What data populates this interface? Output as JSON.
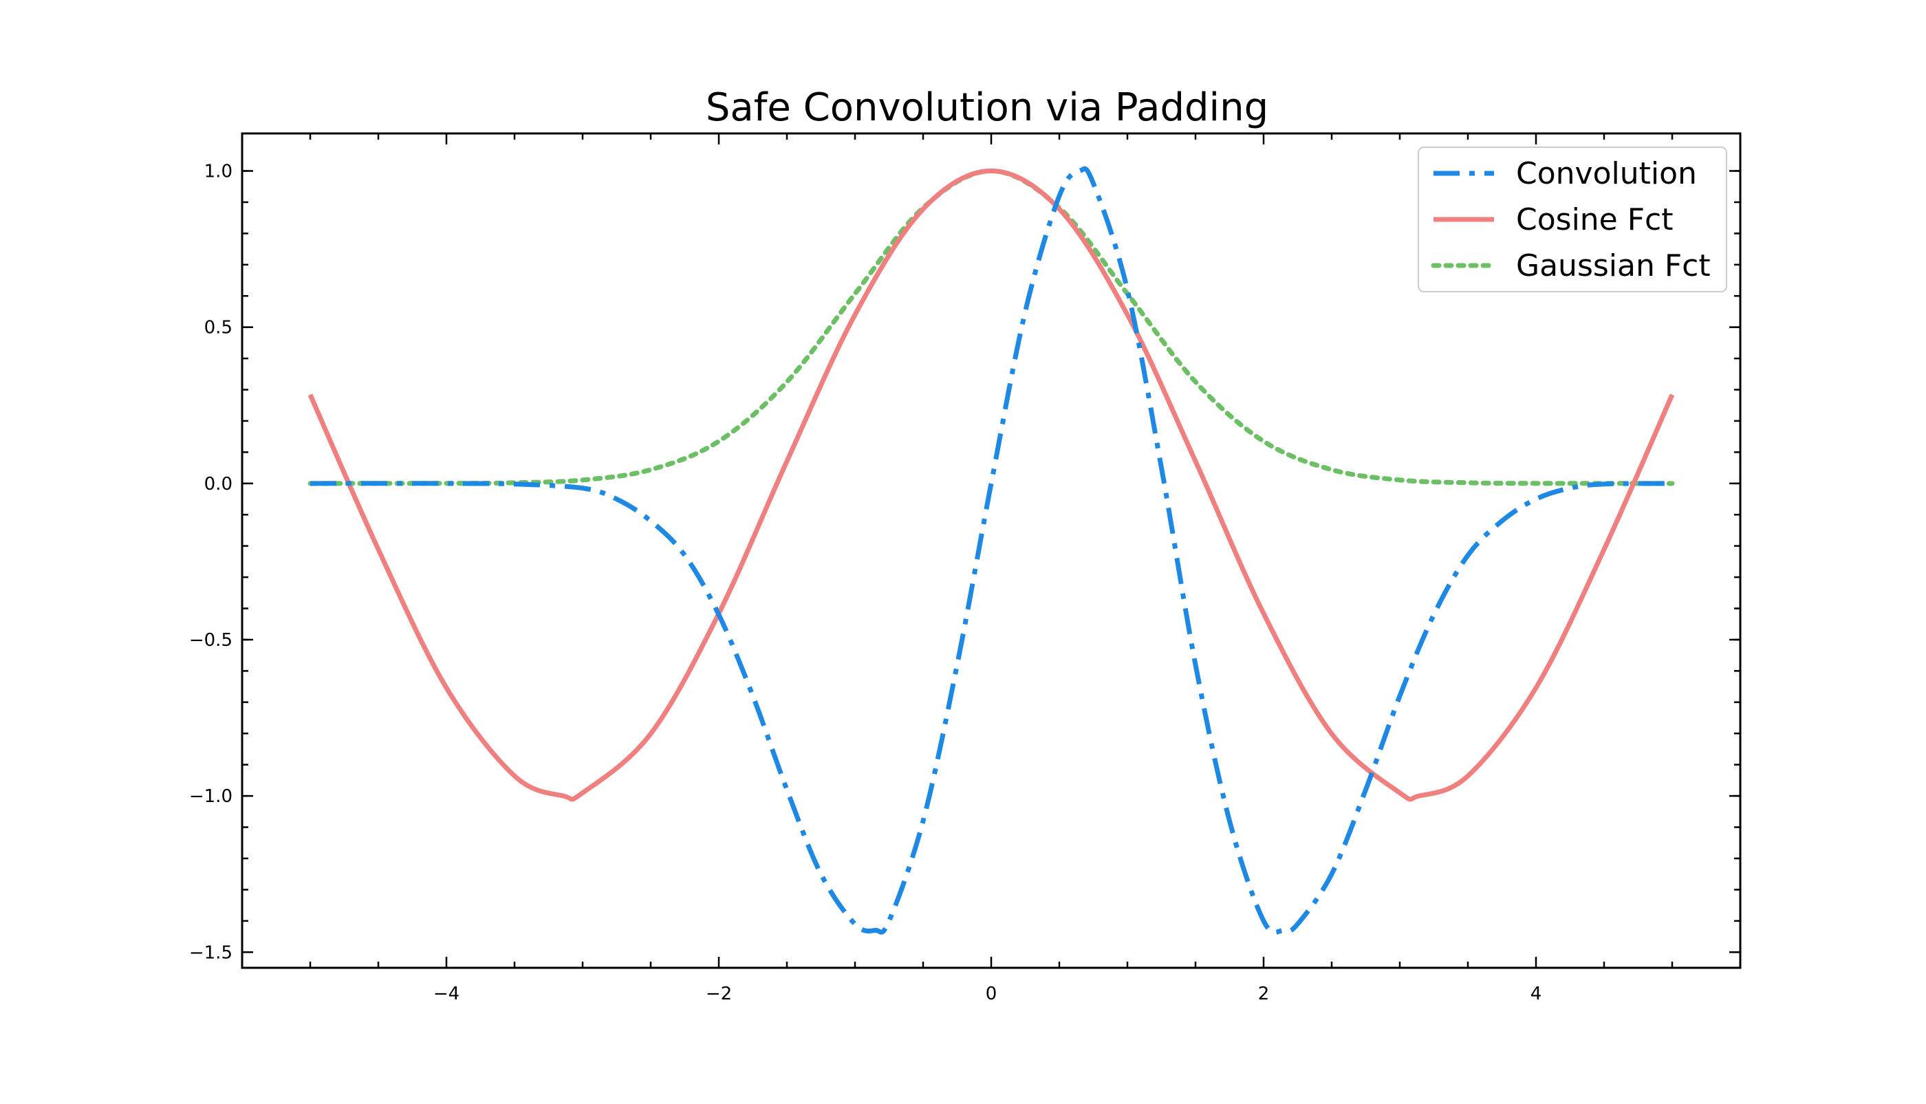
{
  "chart_data": {
    "type": "line",
    "title": "Safe Convolution via Padding",
    "xlabel": "",
    "ylabel": "",
    "xlim": [
      -5.5,
      5.5
    ],
    "ylim": [
      -1.55,
      1.12
    ],
    "x_ticks": [
      -4,
      -2,
      0,
      2,
      4
    ],
    "x_tick_labels": [
      "−4",
      "−2",
      "0",
      "2",
      "4"
    ],
    "y_ticks": [
      -1.5,
      -1.0,
      -0.5,
      0.0,
      0.5,
      1.0
    ],
    "y_tick_labels": [
      "−1.5",
      "−1.0",
      "−0.5",
      "0.0",
      "0.5",
      "1.0"
    ],
    "grid": false,
    "legend_position": "upper right",
    "series": [
      {
        "name": "Convolution",
        "color": "#1e88e5",
        "style": "dashdot",
        "x": [
          -5.0,
          -4.0,
          -3.5,
          -3.0,
          -2.75,
          -2.5,
          -2.25,
          -2.0,
          -1.75,
          -1.5,
          -1.25,
          -1.0,
          -0.85,
          -0.75,
          -0.5,
          -0.25,
          0.0,
          0.25,
          0.5,
          0.65,
          0.75,
          1.0,
          1.25,
          1.5,
          1.75,
          2.0,
          2.15,
          2.25,
          2.5,
          2.75,
          3.0,
          3.25,
          3.5,
          3.75,
          4.0,
          4.25,
          4.5,
          5.0
        ],
        "y": [
          0.0,
          0.0,
          -0.002,
          -0.015,
          -0.05,
          -0.12,
          -0.23,
          -0.42,
          -0.68,
          -0.98,
          -1.25,
          -1.41,
          -1.43,
          -1.4,
          -1.08,
          -0.58,
          0.0,
          0.55,
          0.92,
          1.0,
          0.96,
          0.62,
          0.05,
          -0.58,
          -1.08,
          -1.4,
          -1.43,
          -1.41,
          -1.25,
          -0.98,
          -0.68,
          -0.42,
          -0.23,
          -0.12,
          -0.05,
          -0.015,
          -0.002,
          0.0
        ]
      },
      {
        "name": "Cosine Fct",
        "color": "#f08080",
        "style": "solid",
        "x": [
          -5.0,
          -4.5,
          -4.0,
          -3.5,
          -3.14,
          -3.0,
          -2.5,
          -2.0,
          -1.5,
          -1.0,
          -0.5,
          0.0,
          0.5,
          1.0,
          1.5,
          2.0,
          2.5,
          3.0,
          3.14,
          3.5,
          4.0,
          4.5,
          5.0
        ],
        "y": [
          0.284,
          -0.211,
          -0.654,
          -0.936,
          -1.0,
          -0.99,
          -0.801,
          -0.416,
          0.071,
          0.54,
          0.878,
          1.0,
          0.878,
          0.54,
          0.071,
          -0.416,
          -0.801,
          -0.99,
          -1.0,
          -0.936,
          -0.654,
          -0.211,
          0.284
        ]
      },
      {
        "name": "Gaussian Fct",
        "color": "#6cbf64",
        "style": "dotted",
        "x": [
          -5.0,
          -4.0,
          -3.5,
          -3.0,
          -2.5,
          -2.0,
          -1.5,
          -1.0,
          -0.5,
          0.0,
          0.5,
          1.0,
          1.5,
          2.0,
          2.5,
          3.0,
          3.5,
          4.0,
          5.0
        ],
        "y": [
          0.0,
          0.0003,
          0.0022,
          0.011,
          0.044,
          0.135,
          0.325,
          0.607,
          0.882,
          1.0,
          0.882,
          0.607,
          0.325,
          0.135,
          0.044,
          0.011,
          0.0022,
          0.0003,
          0.0
        ]
      }
    ]
  }
}
